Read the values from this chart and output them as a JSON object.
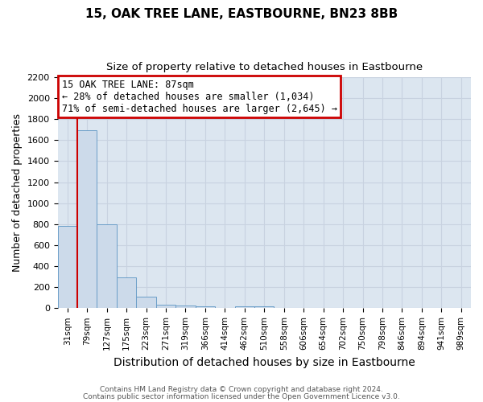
{
  "title": "15, OAK TREE LANE, EASTBOURNE, BN23 8BB",
  "subtitle": "Size of property relative to detached houses in Eastbourne",
  "xlabel": "Distribution of detached houses by size in Eastbourne",
  "ylabel": "Number of detached properties",
  "bar_color": "#ccdaea",
  "bar_edge_color": "#6b9ec8",
  "grid_color": "#c8d2e0",
  "background_color": "#dce6f0",
  "categories": [
    "31sqm",
    "79sqm",
    "127sqm",
    "175sqm",
    "223sqm",
    "271sqm",
    "319sqm",
    "366sqm",
    "414sqm",
    "462sqm",
    "510sqm",
    "558sqm",
    "606sqm",
    "654sqm",
    "702sqm",
    "750sqm",
    "798sqm",
    "846sqm",
    "894sqm",
    "941sqm",
    "989sqm"
  ],
  "values": [
    780,
    1690,
    800,
    295,
    112,
    35,
    25,
    20,
    0,
    20,
    20,
    0,
    0,
    0,
    0,
    0,
    0,
    0,
    0,
    0,
    0
  ],
  "red_line_x": 0.5,
  "ylim": [
    0,
    2200
  ],
  "yticks": [
    0,
    200,
    400,
    600,
    800,
    1000,
    1200,
    1400,
    1600,
    1800,
    2000,
    2200
  ],
  "annotation_line1": "15 OAK TREE LANE: 87sqm",
  "annotation_line2": "← 28% of detached houses are smaller (1,034)",
  "annotation_line3": "71% of semi-detached houses are larger (2,645) →",
  "annotation_box_color": "#ffffff",
  "annotation_box_edge": "#cc0000",
  "red_line_color": "#cc0000",
  "footer1": "Contains HM Land Registry data © Crown copyright and database right 2024.",
  "footer2": "Contains public sector information licensed under the Open Government Licence v3.0."
}
